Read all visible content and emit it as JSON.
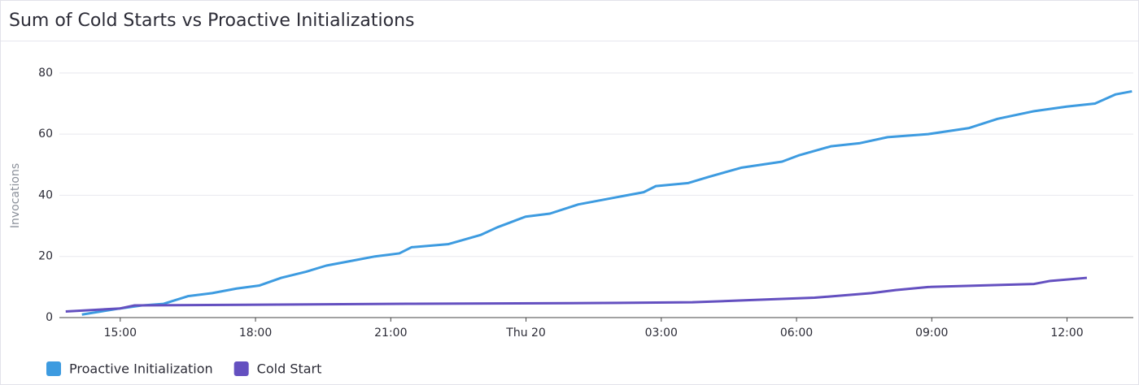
{
  "chart_data": {
    "type": "line",
    "title": "Sum of Cold Starts vs Proactive Initializations",
    "y_label": "Invocations",
    "xlim": [
      13.65,
      37.47
    ],
    "ylim": [
      0,
      85
    ],
    "xticks": [
      {
        "value": 15,
        "label": "15:00"
      },
      {
        "value": 18,
        "label": "18:00"
      },
      {
        "value": 21,
        "label": "21:00"
      },
      {
        "value": 24,
        "label": "Thu 20"
      },
      {
        "value": 27,
        "label": "03:00"
      },
      {
        "value": 30,
        "label": "06:00"
      },
      {
        "value": 33,
        "label": "09:00"
      },
      {
        "value": 36,
        "label": "12:00"
      }
    ],
    "yticks": [
      0,
      20,
      40,
      60,
      80
    ],
    "grid": true,
    "series": [
      {
        "name": "Proactive Initialization",
        "color": "#3d9be0",
        "x": [
          14.15,
          15.0,
          15.5,
          15.96,
          16.5,
          17.04,
          17.58,
          18.09,
          18.57,
          19.12,
          19.57,
          20.11,
          20.65,
          21.19,
          21.46,
          22.27,
          22.99,
          23.36,
          23.63,
          23.99,
          24.53,
          25.16,
          25.88,
          26.61,
          26.88,
          27.6,
          28.05,
          28.77,
          29.68,
          30.04,
          30.76,
          31.39,
          32.02,
          32.92,
          33.83,
          34.46,
          35.27,
          35.99,
          36.62,
          37.08,
          37.44
        ],
        "values": [
          1,
          3,
          4,
          4.5,
          7,
          8,
          9.5,
          10.5,
          13,
          15,
          17,
          18.5,
          20,
          21,
          23,
          24,
          27,
          29.5,
          31,
          33,
          34,
          37,
          39,
          41,
          43,
          44,
          46,
          49,
          51,
          53,
          56,
          57,
          59,
          60,
          62,
          65,
          67.5,
          69,
          70,
          73,
          74
        ]
      },
      {
        "name": "Cold Start",
        "color": "#6450c0",
        "x": [
          13.79,
          15.0,
          15.32,
          17.76,
          21.37,
          24.98,
          27.69,
          29.49,
          30.4,
          31.66,
          32.2,
          32.92,
          35.27,
          35.63,
          36.44
        ],
        "values": [
          2,
          3,
          4,
          4.2,
          4.5,
          4.7,
          5,
          6,
          6.5,
          8,
          9,
          10,
          11,
          12,
          13
        ]
      }
    ]
  }
}
